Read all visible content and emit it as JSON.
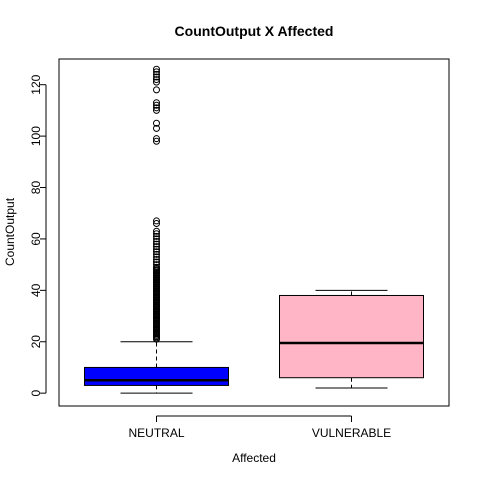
{
  "chart_data": {
    "type": "box",
    "title": "CountOutput X Affected",
    "xlabel": "Affected",
    "ylabel": "CountOutput",
    "ylim": [
      -5,
      130
    ],
    "yticks": [
      0,
      20,
      40,
      60,
      80,
      100,
      120
    ],
    "categories": [
      "NEUTRAL",
      "VULNERABLE"
    ],
    "boxes": [
      {
        "category": "NEUTRAL",
        "color": "#0000ff",
        "min": 0,
        "q1": 3,
        "median": 5,
        "q3": 10,
        "max": 20,
        "outliers": [
          21,
          21.5,
          22,
          22.5,
          23,
          23.5,
          24,
          24.5,
          25,
          25.5,
          26,
          26.5,
          27,
          27.5,
          28,
          28.5,
          29,
          29.5,
          30,
          30.5,
          31,
          31.5,
          32,
          32.5,
          33,
          33.5,
          34,
          34.5,
          35,
          35.5,
          36,
          36.5,
          37,
          37.5,
          38,
          38.5,
          39,
          39.5,
          40,
          40.5,
          41,
          41.5,
          42,
          42.5,
          43,
          43.5,
          44,
          44.5,
          45,
          45.5,
          46,
          46.5,
          47,
          47.5,
          48,
          48.5,
          49,
          50,
          51,
          52,
          53,
          54,
          55,
          56,
          57,
          58,
          59,
          60,
          61,
          62,
          63,
          66,
          67,
          98,
          99,
          103,
          105,
          110,
          111,
          112,
          113,
          118,
          121,
          122,
          123,
          124,
          125,
          126
        ]
      },
      {
        "category": "VULNERABLE",
        "color": "#ffb5c5",
        "min": 2,
        "q1": 6,
        "median": 19.5,
        "q3": 38,
        "max": 40,
        "outliers": []
      }
    ]
  }
}
